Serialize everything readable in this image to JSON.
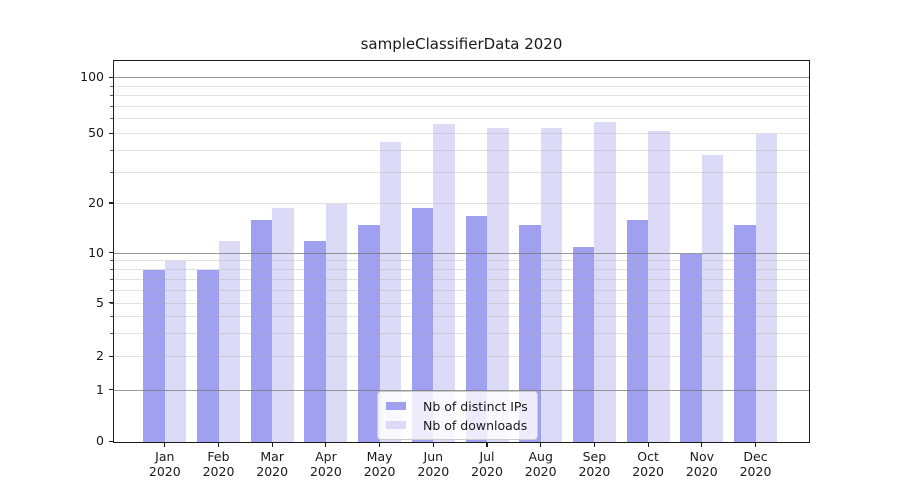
{
  "title": "sampleClassifierData 2020",
  "colors": {
    "distinct_ips": "#a0a0f0",
    "downloads": "#dbdbf8",
    "grid_major": "rgba(120,120,120,0.75)",
    "grid_minor": "rgba(170,170,170,0.35)",
    "axis": "#1c1c1c",
    "legend_bg": "rgba(255,255,255,0.8)",
    "legend_border": "#cccccc"
  },
  "chart_data": {
    "type": "bar",
    "title": "sampleClassifierData 2020",
    "categories": [
      "Jan",
      "Feb",
      "Mar",
      "Apr",
      "May",
      "Jun",
      "Jul",
      "Aug",
      "Sep",
      "Oct",
      "Nov",
      "Dec"
    ],
    "year_label": "2020",
    "series": [
      {
        "name": "Nb of distinct IPs",
        "color_key": "distinct_ips",
        "values": [
          8,
          8,
          16,
          12,
          15,
          19,
          17,
          15,
          11,
          16,
          10,
          15
        ]
      },
      {
        "name": "Nb of downloads",
        "color_key": "downloads",
        "values": [
          9,
          12,
          19,
          20,
          45,
          57,
          54,
          54,
          58,
          52,
          38,
          50
        ]
      }
    ],
    "yaxis": {
      "scale": "symlog",
      "tick_labels": [
        0,
        1,
        2,
        5,
        10,
        20,
        50,
        100
      ],
      "major_gridlines": [
        1,
        10,
        100
      ],
      "minor_gridlines": [
        2,
        3,
        4,
        5,
        6,
        7,
        8,
        9,
        20,
        30,
        40,
        50,
        60,
        70,
        80,
        90
      ],
      "ylim": [
        0,
        122
      ],
      "grid": "on"
    },
    "xaxis": {
      "label_line2": "2020"
    },
    "legend_position": "lower center"
  }
}
